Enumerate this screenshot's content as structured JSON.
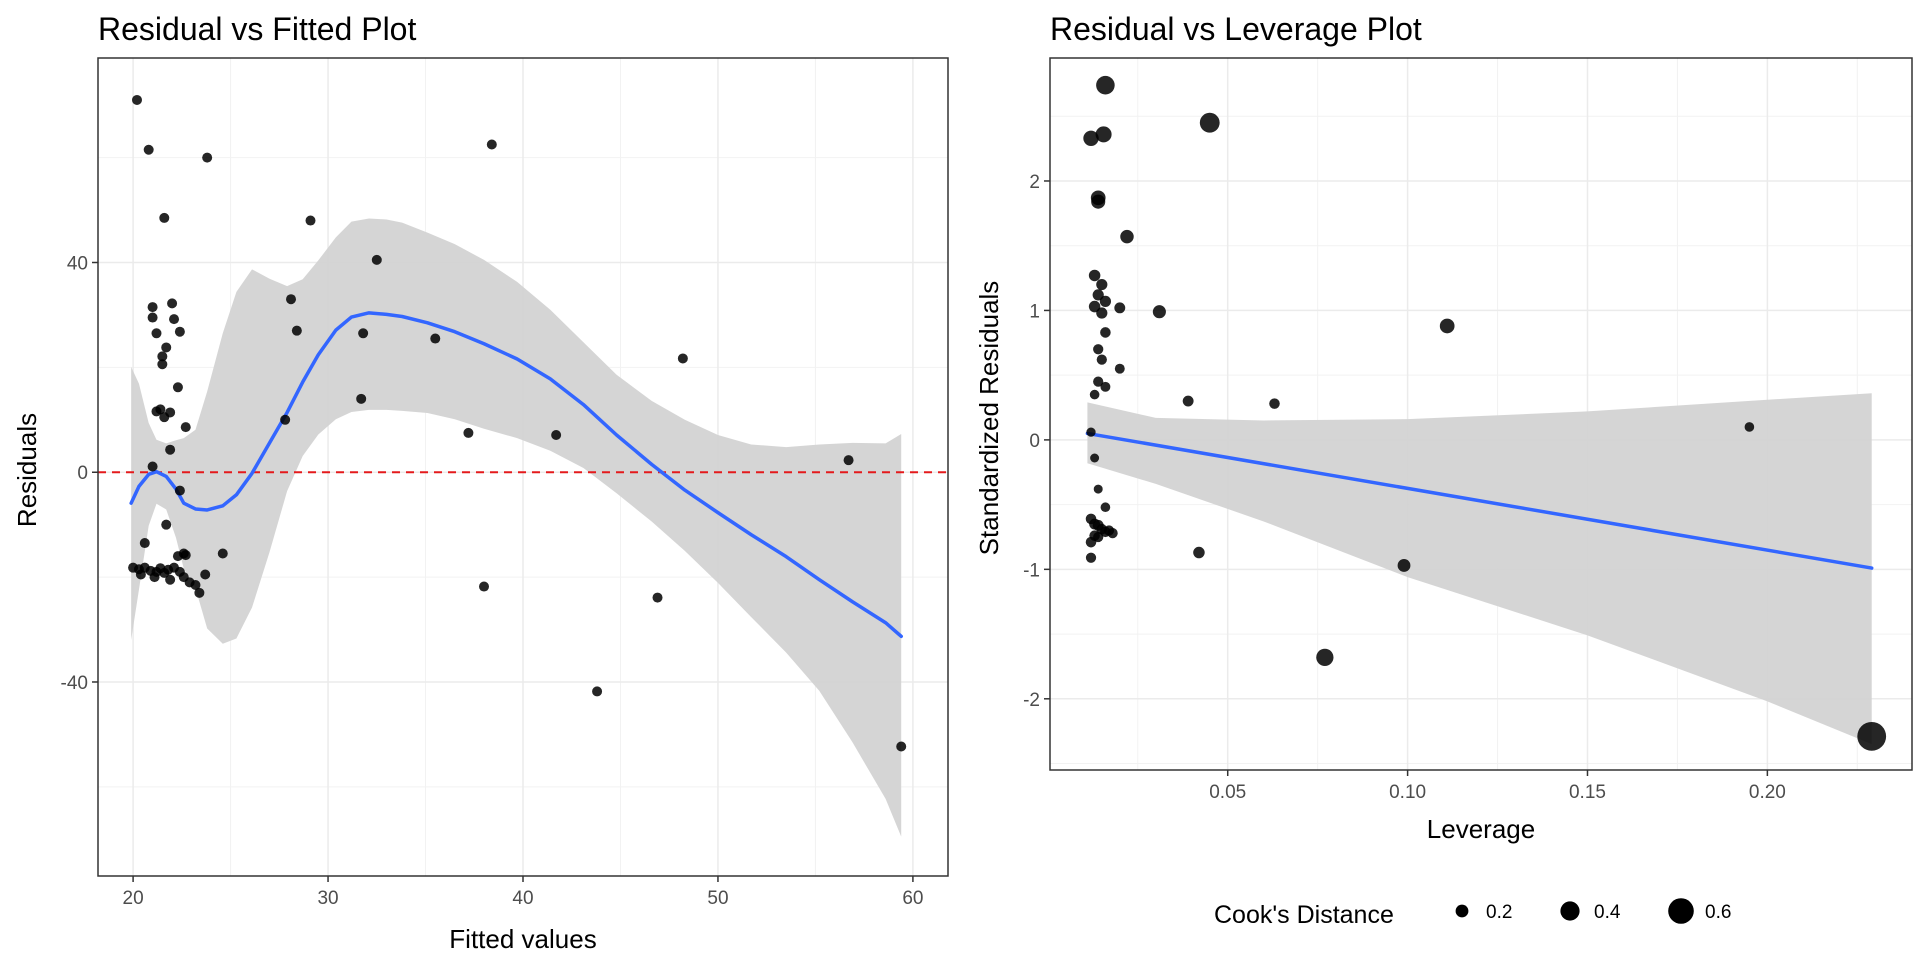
{
  "chart_data": [
    {
      "type": "scatter",
      "title": "Residual vs Fitted Plot",
      "xlabel": "Fitted values",
      "ylabel": "Residuals",
      "xlim": [
        18.2,
        61.8
      ],
      "ylim": [
        -77,
        79
      ],
      "xticks": [
        20,
        30,
        40,
        50,
        60
      ],
      "xtick_labels": [
        "20",
        "30",
        "40",
        "50",
        "60"
      ],
      "yticks": [
        -40,
        0,
        40
      ],
      "ytick_labels": [
        "-40",
        "0",
        "40"
      ],
      "grid": true,
      "reference_line": {
        "y": 0,
        "style": "dashed",
        "color": "#e41a1c"
      },
      "point_color": "#000000",
      "smooth_color": "#3366ff",
      "band_color": "#d3d3d3",
      "points": [
        [
          20.2,
          71
        ],
        [
          20.8,
          61.5
        ],
        [
          21.6,
          48.5
        ],
        [
          23.8,
          60
        ],
        [
          29.1,
          48
        ],
        [
          38.4,
          62.5
        ],
        [
          21.0,
          31.5
        ],
        [
          21.0,
          29.5
        ],
        [
          22.0,
          32.2
        ],
        [
          22.1,
          29.2
        ],
        [
          21.2,
          26.5
        ],
        [
          22.4,
          26.8
        ],
        [
          21.7,
          23.8
        ],
        [
          21.5,
          22.1
        ],
        [
          21.5,
          20.6
        ],
        [
          22.3,
          16.2
        ],
        [
          21.4,
          12.0
        ],
        [
          21.2,
          11.6
        ],
        [
          21.9,
          11.4
        ],
        [
          21.6,
          10.5
        ],
        [
          22.7,
          8.6
        ],
        [
          21.9,
          4.3
        ],
        [
          21.0,
          1.1
        ],
        [
          22.4,
          -3.5
        ],
        [
          21.7,
          -10.0
        ],
        [
          20.6,
          -13.5
        ],
        [
          22.3,
          -16.0
        ],
        [
          22.6,
          -15.5
        ],
        [
          24.6,
          -15.5
        ],
        [
          22.7,
          -15.8
        ],
        [
          20.0,
          -18.2
        ],
        [
          20.3,
          -18.5
        ],
        [
          20.6,
          -18.2
        ],
        [
          20.9,
          -18.8
        ],
        [
          21.2,
          -19.0
        ],
        [
          21.4,
          -18.3
        ],
        [
          21.6,
          -19.2
        ],
        [
          21.8,
          -18.6
        ],
        [
          22.1,
          -18.2
        ],
        [
          22.4,
          -19.0
        ],
        [
          22.6,
          -20.0
        ],
        [
          22.9,
          -21.0
        ],
        [
          23.2,
          -21.5
        ],
        [
          23.4,
          -23.0
        ],
        [
          23.7,
          -19.5
        ],
        [
          20.4,
          -19.5
        ],
        [
          21.1,
          -20.0
        ],
        [
          21.9,
          -20.5
        ],
        [
          28.1,
          33
        ],
        [
          28.4,
          27
        ],
        [
          27.8,
          10
        ],
        [
          31.8,
          26.5
        ],
        [
          31.7,
          14
        ],
        [
          32.5,
          40.5
        ],
        [
          35.5,
          25.5
        ],
        [
          37.2,
          7.5
        ],
        [
          38.0,
          -21.8
        ],
        [
          41.7,
          7.1
        ],
        [
          43.8,
          -41.8
        ],
        [
          46.9,
          -23.9
        ],
        [
          48.2,
          21.7
        ],
        [
          56.7,
          2.3
        ],
        [
          59.4,
          -52.3
        ]
      ],
      "smooth": [
        [
          19.9,
          -5.9
        ],
        [
          20.3,
          -2.7
        ],
        [
          20.8,
          -0.4
        ],
        [
          21.2,
          0.1
        ],
        [
          21.7,
          -0.8
        ],
        [
          22.2,
          -3.2
        ],
        [
          22.6,
          -5.9
        ],
        [
          23.2,
          -7.0
        ],
        [
          23.8,
          -7.2
        ],
        [
          24.6,
          -6.4
        ],
        [
          25.3,
          -4.3
        ],
        [
          26.1,
          -0.2
        ],
        [
          27.0,
          5.6
        ],
        [
          27.9,
          11.4
        ],
        [
          28.7,
          17.2
        ],
        [
          29.5,
          22.4
        ],
        [
          30.4,
          27.1
        ],
        [
          31.2,
          29.6
        ],
        [
          32.1,
          30.4
        ],
        [
          33.0,
          30.1
        ],
        [
          33.8,
          29.7
        ],
        [
          35.1,
          28.5
        ],
        [
          36.5,
          26.8
        ],
        [
          38.0,
          24.5
        ],
        [
          39.7,
          21.6
        ],
        [
          41.4,
          17.8
        ],
        [
          43.1,
          12.9
        ],
        [
          44.8,
          7.1
        ],
        [
          46.6,
          1.5
        ],
        [
          48.3,
          -3.4
        ],
        [
          50.0,
          -7.7
        ],
        [
          51.7,
          -11.9
        ],
        [
          53.5,
          -16.1
        ],
        [
          55.2,
          -20.5
        ],
        [
          56.9,
          -24.7
        ],
        [
          58.6,
          -28.7
        ],
        [
          59.4,
          -31.3
        ]
      ],
      "band_upper": [
        [
          19.9,
          20.1
        ],
        [
          20.3,
          16.9
        ],
        [
          20.8,
          9.4
        ],
        [
          21.2,
          6.2
        ],
        [
          21.7,
          5.5
        ],
        [
          22.2,
          6.1
        ],
        [
          22.6,
          6.5
        ],
        [
          23.2,
          8.1
        ],
        [
          23.8,
          15.4
        ],
        [
          24.6,
          26.5
        ],
        [
          25.3,
          34.4
        ],
        [
          26.1,
          38.7
        ],
        [
          27.0,
          36.9
        ],
        [
          27.9,
          35.5
        ],
        [
          28.7,
          36.8
        ],
        [
          29.5,
          40.4
        ],
        [
          30.4,
          44.8
        ],
        [
          31.2,
          47.8
        ],
        [
          32.1,
          48.4
        ],
        [
          33.0,
          48.2
        ],
        [
          33.8,
          47.6
        ],
        [
          35.1,
          45.7
        ],
        [
          36.5,
          43.5
        ],
        [
          38.0,
          40.5
        ],
        [
          39.7,
          36.3
        ],
        [
          41.4,
          31.0
        ],
        [
          43.1,
          24.8
        ],
        [
          44.8,
          18.6
        ],
        [
          46.6,
          13.6
        ],
        [
          48.3,
          10.0
        ],
        [
          50.0,
          7.1
        ],
        [
          51.7,
          5.3
        ],
        [
          53.5,
          4.8
        ],
        [
          55.2,
          5.3
        ],
        [
          56.9,
          5.6
        ],
        [
          58.6,
          5.5
        ],
        [
          59.4,
          7.3
        ]
      ],
      "band_lower": [
        [
          19.9,
          -32.0
        ],
        [
          20.3,
          -22.4
        ],
        [
          20.8,
          -10.2
        ],
        [
          21.2,
          -6.0
        ],
        [
          21.7,
          -7.1
        ],
        [
          22.2,
          -12.5
        ],
        [
          22.6,
          -18.4
        ],
        [
          23.2,
          -22.1
        ],
        [
          23.8,
          -29.8
        ],
        [
          24.6,
          -32.7
        ],
        [
          25.3,
          -31.7
        ],
        [
          26.1,
          -25.8
        ],
        [
          27.0,
          -15.2
        ],
        [
          27.9,
          -3.6
        ],
        [
          28.7,
          3.1
        ],
        [
          29.5,
          7.2
        ],
        [
          30.4,
          10.1
        ],
        [
          31.2,
          11.5
        ],
        [
          32.1,
          11.9
        ],
        [
          33.0,
          11.9
        ],
        [
          33.8,
          11.7
        ],
        [
          35.1,
          11.3
        ],
        [
          36.5,
          10.1
        ],
        [
          38.0,
          8.3
        ],
        [
          39.7,
          6.5
        ],
        [
          41.4,
          4.1
        ],
        [
          43.1,
          0.8
        ],
        [
          44.8,
          -4.0
        ],
        [
          46.6,
          -9.4
        ],
        [
          48.3,
          -15.0
        ],
        [
          50.0,
          -21.1
        ],
        [
          51.7,
          -27.6
        ],
        [
          53.5,
          -34.4
        ],
        [
          55.2,
          -41.7
        ],
        [
          56.9,
          -51.5
        ],
        [
          58.6,
          -62.3
        ],
        [
          59.4,
          -69.5
        ]
      ]
    },
    {
      "type": "scatter",
      "title": "Residual vs Leverage Plot",
      "xlabel": "Leverage",
      "ylabel": "Standardized Residuals",
      "xlim": [
        0.0006,
        0.2402
      ],
      "ylim": [
        -2.55,
        2.95
      ],
      "xticks": [
        0.05,
        0.1,
        0.15,
        0.2
      ],
      "xtick_labels": [
        "0.05",
        "0.10",
        "0.15",
        "0.20"
      ],
      "yticks": [
        -2,
        -1,
        0,
        1,
        2
      ],
      "ytick_labels": [
        "-2",
        "-1",
        "0",
        "1",
        "2"
      ],
      "grid": true,
      "point_color": "#000000",
      "smooth_color": "#3366ff",
      "band_color": "#d3d3d3",
      "legend": {
        "title": "Cook's Distance",
        "position": "bottom",
        "entries": [
          {
            "label": "0.2",
            "value": 0.2
          },
          {
            "label": "0.4",
            "value": 0.4
          },
          {
            "label": "0.6",
            "value": 0.6
          }
        ]
      },
      "points": [
        [
          0.016,
          2.74,
          0.38
        ],
        [
          0.012,
          2.33,
          0.28
        ],
        [
          0.0155,
          2.36,
          0.3
        ],
        [
          0.045,
          2.45,
          0.42
        ],
        [
          0.014,
          1.87,
          0.26
        ],
        [
          0.014,
          1.84,
          0.24
        ],
        [
          0.022,
          1.57,
          0.22
        ],
        [
          0.031,
          0.99,
          0.21
        ],
        [
          0.111,
          0.88,
          0.26
        ],
        [
          0.039,
          0.3,
          0.14
        ],
        [
          0.063,
          0.28,
          0.13
        ],
        [
          0.195,
          0.1,
          0.1
        ],
        [
          0.013,
          1.27,
          0.16
        ],
        [
          0.015,
          1.2,
          0.15
        ],
        [
          0.014,
          1.12,
          0.15
        ],
        [
          0.016,
          1.07,
          0.15
        ],
        [
          0.013,
          1.03,
          0.16
        ],
        [
          0.015,
          0.98,
          0.15
        ],
        [
          0.02,
          1.02,
          0.14
        ],
        [
          0.016,
          0.83,
          0.13
        ],
        [
          0.014,
          0.7,
          0.12
        ],
        [
          0.015,
          0.62,
          0.12
        ],
        [
          0.014,
          0.45,
          0.12
        ],
        [
          0.016,
          0.41,
          0.11
        ],
        [
          0.02,
          0.55,
          0.11
        ],
        [
          0.013,
          0.35,
          0.1
        ],
        [
          0.012,
          0.06,
          0.09
        ],
        [
          0.013,
          -0.14,
          0.08
        ],
        [
          0.014,
          -0.38,
          0.08
        ],
        [
          0.016,
          -0.52,
          0.1
        ],
        [
          0.012,
          -0.61,
          0.13
        ],
        [
          0.013,
          -0.65,
          0.14
        ],
        [
          0.014,
          -0.66,
          0.14
        ],
        [
          0.015,
          -0.69,
          0.13
        ],
        [
          0.016,
          -0.71,
          0.13
        ],
        [
          0.013,
          -0.74,
          0.13
        ],
        [
          0.012,
          -0.79,
          0.13
        ],
        [
          0.014,
          -0.75,
          0.12
        ],
        [
          0.017,
          -0.7,
          0.12
        ],
        [
          0.018,
          -0.72,
          0.12
        ],
        [
          0.012,
          -0.91,
          0.12
        ],
        [
          0.042,
          -0.87,
          0.16
        ],
        [
          0.099,
          -0.97,
          0.2
        ],
        [
          0.077,
          -1.68,
          0.34
        ],
        [
          0.229,
          -2.29,
          0.7
        ]
      ],
      "smooth": [
        [
          0.011,
          0.05
        ],
        [
          0.229,
          -0.99
        ]
      ],
      "band_upper": [
        [
          0.011,
          0.29
        ],
        [
          0.03,
          0.17
        ],
        [
          0.06,
          0.15
        ],
        [
          0.1,
          0.16
        ],
        [
          0.15,
          0.22
        ],
        [
          0.2,
          0.31
        ],
        [
          0.229,
          0.36
        ]
      ],
      "band_lower": [
        [
          0.011,
          -0.18
        ],
        [
          0.03,
          -0.34
        ],
        [
          0.06,
          -0.63
        ],
        [
          0.1,
          -1.06
        ],
        [
          0.15,
          -1.51
        ],
        [
          0.2,
          -2.02
        ],
        [
          0.229,
          -2.35
        ]
      ]
    }
  ]
}
